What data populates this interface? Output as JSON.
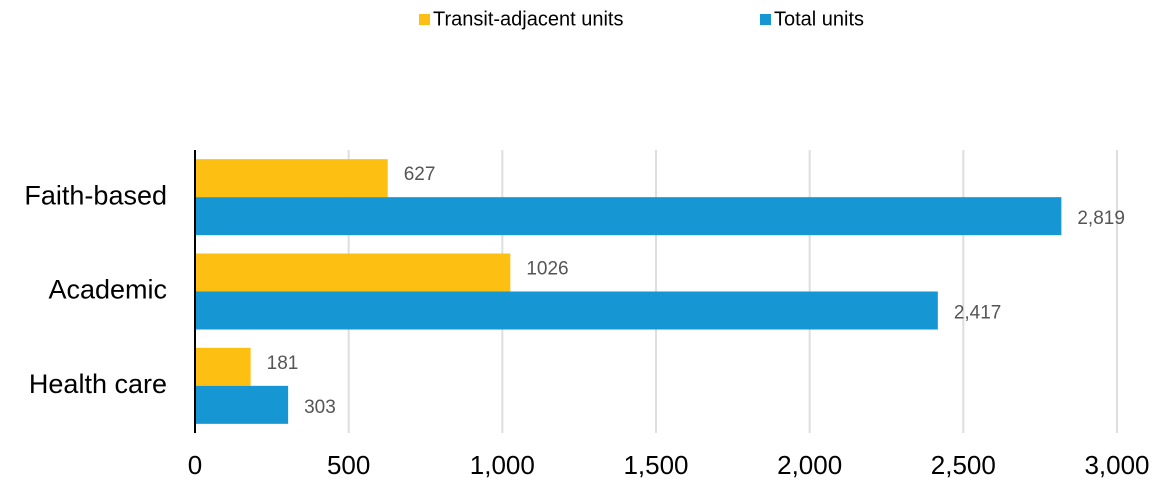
{
  "chart_data": {
    "type": "bar",
    "orientation": "horizontal",
    "categories": [
      "Faith-based",
      "Academic",
      "Health care"
    ],
    "series": [
      {
        "name": "Transit-adjacent units",
        "color": "#fdbf11",
        "values": [
          627,
          1026,
          181
        ]
      },
      {
        "name": "Total units",
        "color": "#1696d2",
        "values": [
          2819,
          2417,
          303
        ],
        "value_labels": [
          "2,819",
          "2,417",
          "303"
        ]
      }
    ],
    "xlim": [
      0,
      3000
    ],
    "xticks": [
      0,
      500,
      {
        "value": 1000,
        "label": "1,000"
      },
      {
        "value": 1500,
        "label": "1,500"
      },
      {
        "value": 2000,
        "label": "2,000"
      },
      {
        "value": 2500,
        "label": "2,500"
      },
      {
        "value": 3000,
        "label": "3,000"
      }
    ],
    "grid": true,
    "legend": "top"
  }
}
